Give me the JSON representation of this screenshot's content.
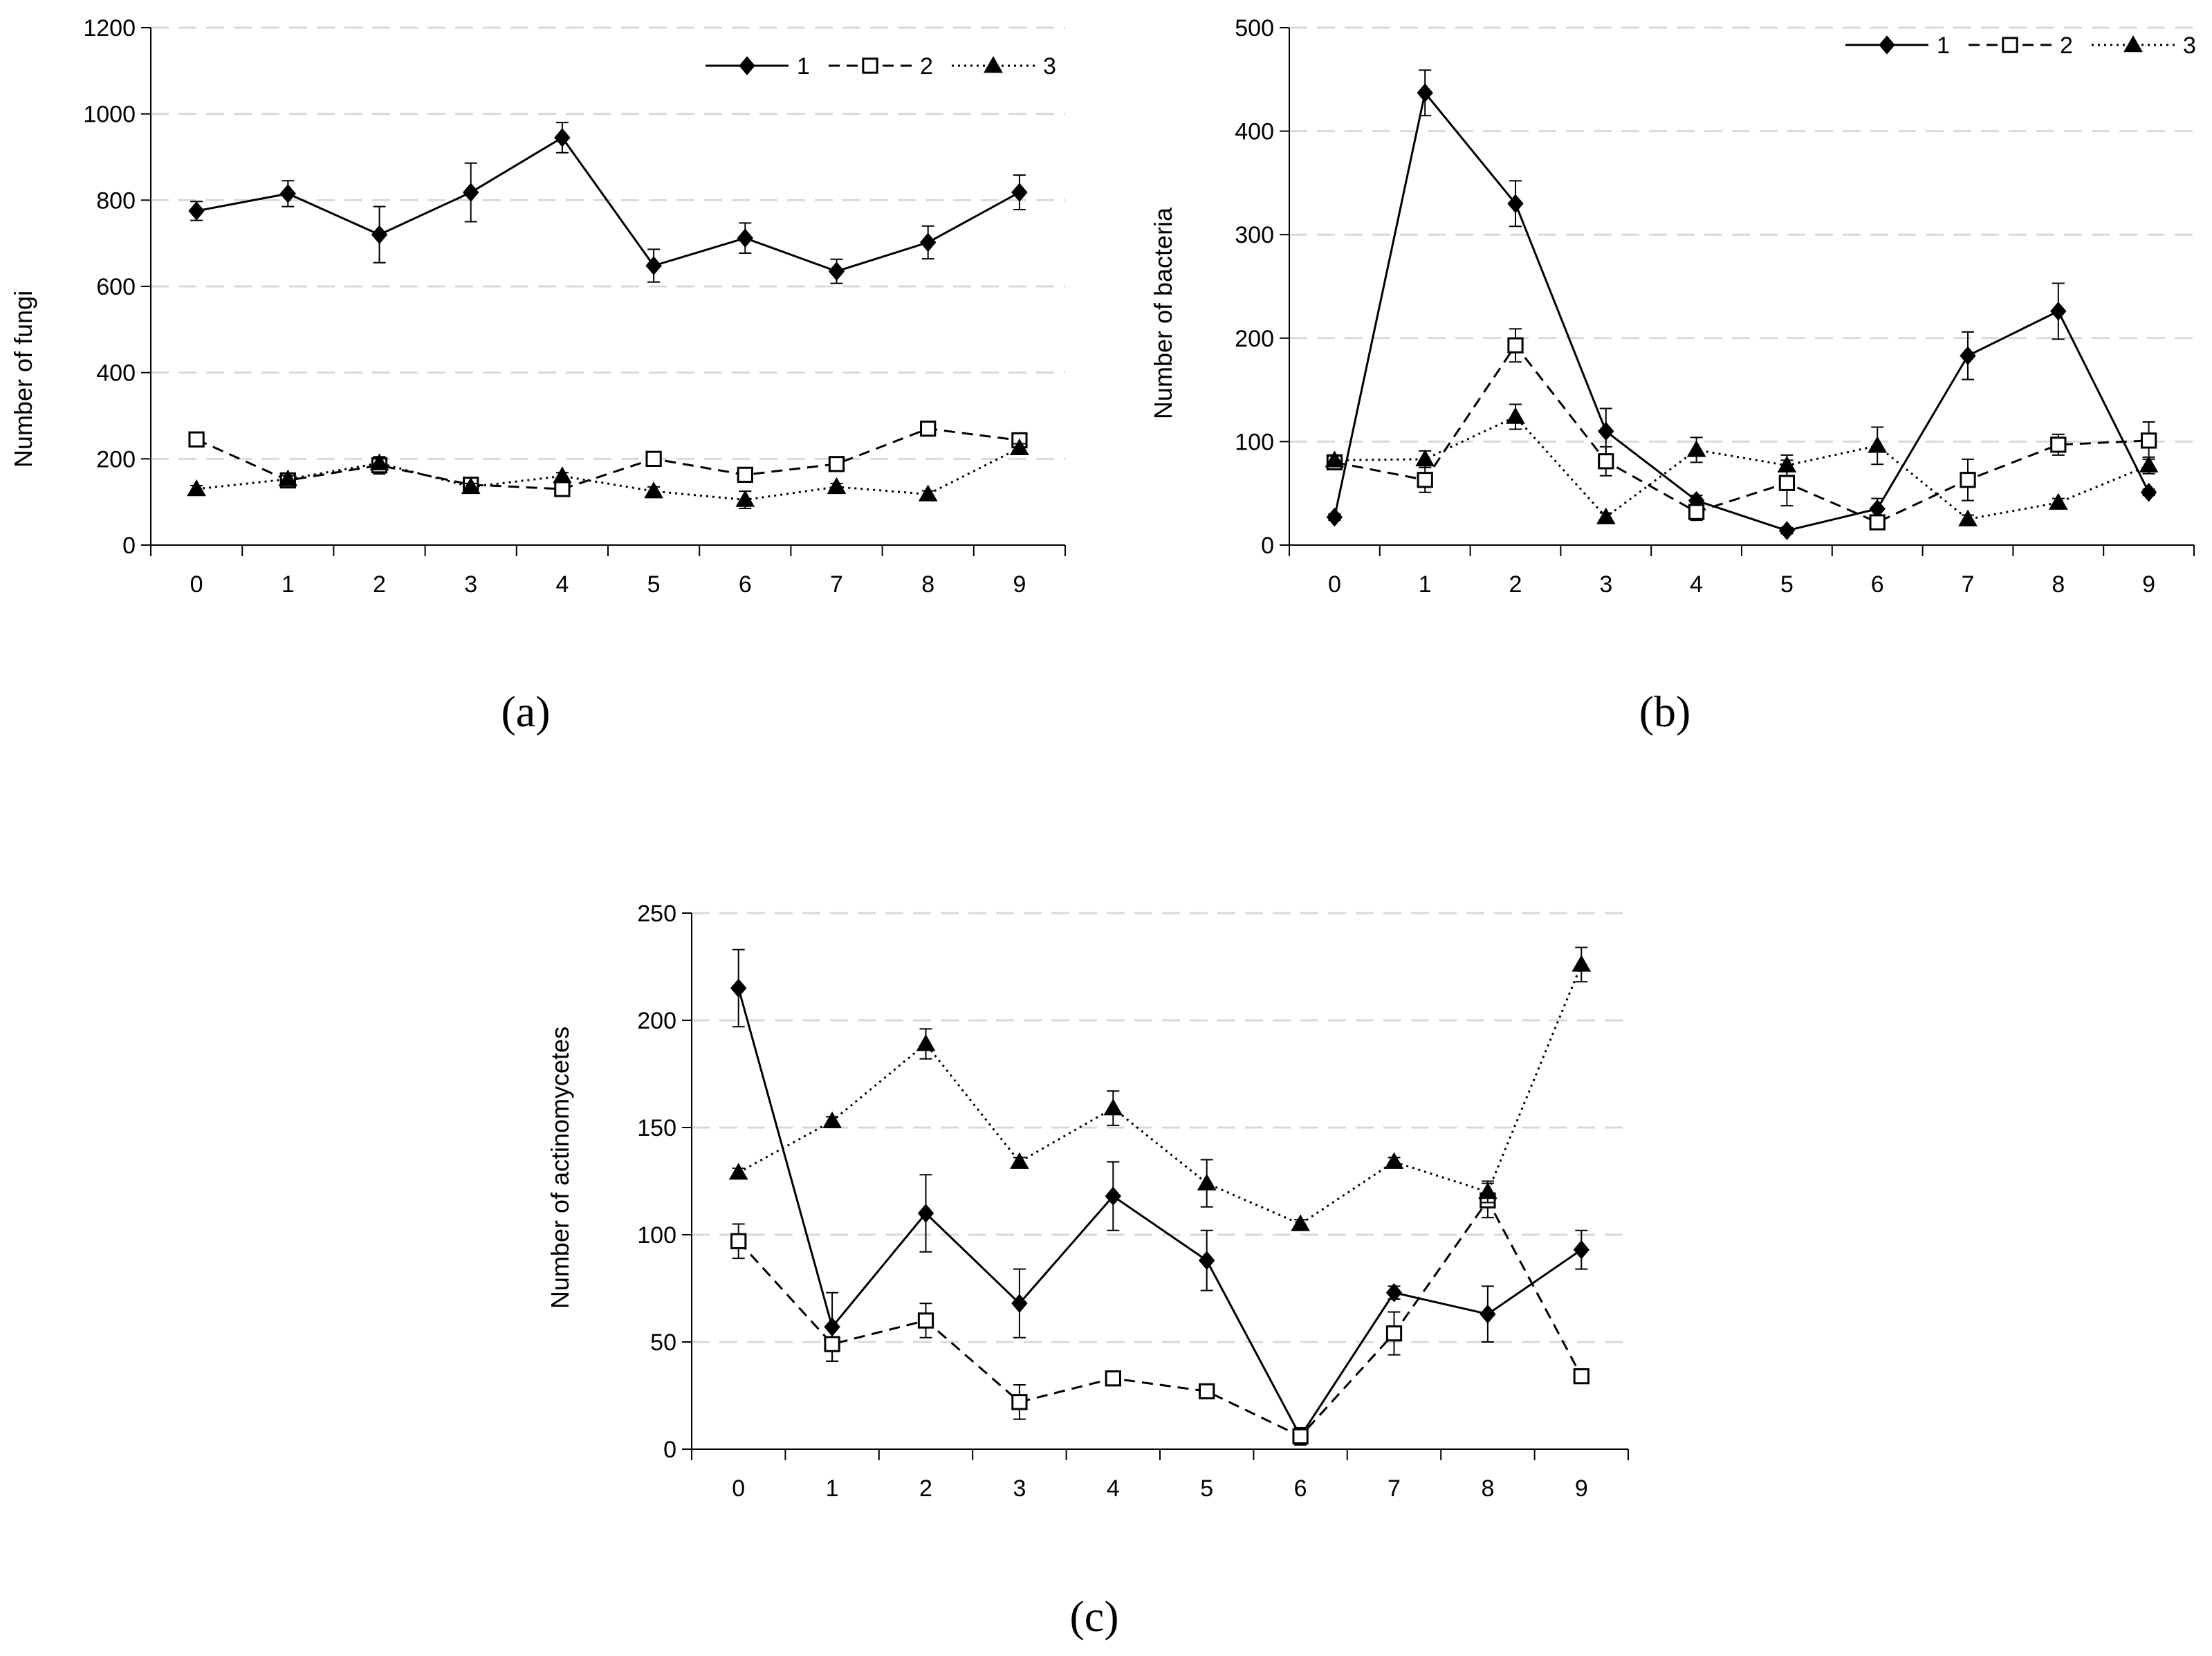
{
  "chart_data": [
    {
      "type": "line",
      "panel": "a",
      "panel_label": "(a)",
      "title": "",
      "xlabel": "",
      "ylabel": "Number of fungi",
      "categories": [
        "0",
        "1",
        "2",
        "3",
        "4",
        "5",
        "6",
        "7",
        "8",
        "9"
      ],
      "ylim": [
        0,
        1200
      ],
      "yticks": [
        0,
        200,
        400,
        600,
        800,
        1000,
        1200
      ],
      "grid": true,
      "legend": "top-right",
      "series": [
        {
          "name": "1",
          "marker": "diamond",
          "dash": "solid",
          "values": [
            775,
            815,
            720,
            818,
            945,
            648,
            712,
            635,
            702,
            818
          ],
          "errors": [
            22,
            30,
            65,
            68,
            35,
            38,
            35,
            28,
            38,
            40
          ]
        },
        {
          "name": "2",
          "marker": "square-open",
          "dash": "dashed",
          "values": [
            245,
            150,
            185,
            140,
            130,
            200,
            163,
            188,
            270,
            243
          ],
          "errors": [
            10,
            8,
            20,
            10,
            8,
            8,
            8,
            8,
            8,
            12
          ]
        },
        {
          "name": "3",
          "marker": "triangle",
          "dash": "dotted",
          "values": [
            130,
            153,
            190,
            135,
            160,
            125,
            105,
            135,
            118,
            225
          ],
          "errors": [
            8,
            8,
            10,
            8,
            8,
            10,
            20,
            8,
            8,
            10
          ]
        }
      ]
    },
    {
      "type": "line",
      "panel": "b",
      "panel_label": "(b)",
      "title": "",
      "xlabel": "",
      "ylabel": "Number of bacteria",
      "categories": [
        "0",
        "1",
        "2",
        "3",
        "4",
        "5",
        "6",
        "7",
        "8",
        "9"
      ],
      "ylim": [
        0,
        500
      ],
      "yticks": [
        0,
        100,
        200,
        300,
        400,
        500
      ],
      "grid": true,
      "legend": "top-right",
      "series": [
        {
          "name": "1",
          "marker": "diamond",
          "dash": "solid",
          "values": [
            27,
            437,
            330,
            110,
            43,
            14,
            35,
            183,
            226,
            51
          ],
          "errors": [
            3,
            22,
            22,
            22,
            5,
            3,
            10,
            23,
            27,
            3
          ]
        },
        {
          "name": "2",
          "marker": "square-open",
          "dash": "dashed",
          "values": [
            80,
            63,
            193,
            81,
            32,
            60,
            22,
            63,
            97,
            101
          ],
          "errors": [
            4,
            12,
            16,
            14,
            8,
            22,
            5,
            20,
            10,
            18
          ]
        },
        {
          "name": "3",
          "marker": "triangle",
          "dash": "dotted",
          "values": [
            82,
            83,
            124,
            27,
            92,
            77,
            96,
            25,
            41,
            77
          ],
          "errors": [
            4,
            8,
            12,
            4,
            12,
            10,
            18,
            4,
            4,
            8
          ]
        }
      ]
    },
    {
      "type": "line",
      "panel": "c",
      "panel_label": "(c)",
      "title": "",
      "xlabel": "",
      "ylabel": "Number of actinomycetes",
      "categories": [
        "0",
        "1",
        "2",
        "3",
        "4",
        "5",
        "6",
        "7",
        "8",
        "9"
      ],
      "ylim": [
        0,
        250
      ],
      "yticks": [
        0,
        50,
        100,
        150,
        200,
        250
      ],
      "grid": true,
      "legend": "none",
      "series": [
        {
          "name": "1",
          "marker": "diamond",
          "dash": "solid",
          "values": [
            215,
            57,
            110,
            68,
            118,
            88,
            6,
            73,
            63,
            93
          ],
          "errors": [
            18,
            16,
            18,
            16,
            16,
            14,
            4,
            3,
            13,
            9
          ]
        },
        {
          "name": "2",
          "marker": "square-open",
          "dash": "dashed",
          "values": [
            97,
            49,
            60,
            22,
            33,
            27,
            6,
            54,
            116,
            34
          ],
          "errors": [
            8,
            8,
            8,
            8,
            3,
            3,
            4,
            10,
            8,
            2
          ]
        },
        {
          "name": "3",
          "marker": "triangle",
          "dash": "dotted",
          "values": [
            129,
            153,
            189,
            134,
            159,
            124,
            105,
            134,
            120,
            226
          ],
          "errors": [
            2,
            2,
            7,
            2,
            8,
            11,
            2,
            2,
            5,
            8
          ]
        }
      ]
    }
  ]
}
